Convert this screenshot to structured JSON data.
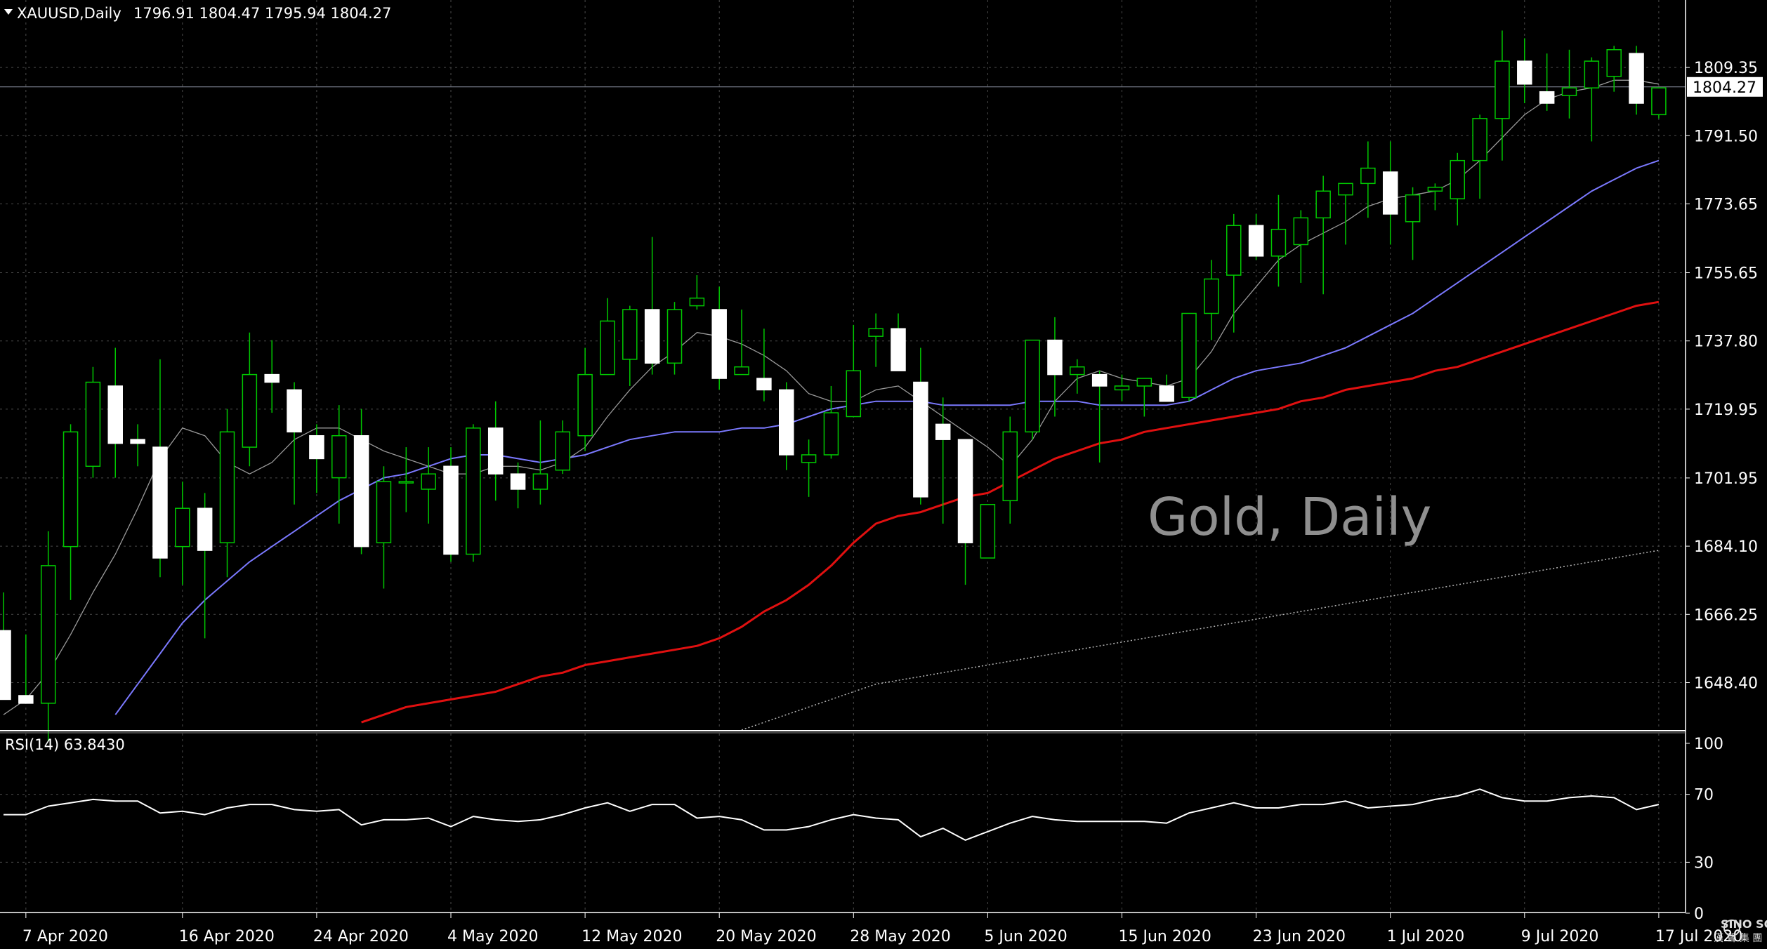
{
  "header": {
    "symbol": "XAUUSD,Daily",
    "ohlc": "1796.91 1804.47 1795.94 1804.27"
  },
  "watermark": "Gold, Daily",
  "rsi_label": "RSI(14) 63.8430",
  "logo": {
    "text": "SINO SOUND",
    "subtext": "漢 聲 集 團"
  },
  "colors": {
    "background": "#000000",
    "grid": "#4a4a4a",
    "bull_candle": "#00c800",
    "bear_body": "#ffffff",
    "ma_fast": "#9a9a9a",
    "ma_20": "#7b79ff",
    "ma_50": "#e01010",
    "ma_100": "#b5b5b5",
    "rsi_line": "#ffffff",
    "bid_line": "#8a8fa0"
  },
  "chart_data": [
    {
      "type": "candlestick",
      "title": "XAUUSD,Daily",
      "y_ticks": [
        1648.4,
        1666.25,
        1684.1,
        1701.95,
        1719.95,
        1737.8,
        1755.65,
        1773.65,
        1791.5,
        1809.35
      ],
      "y_range": [
        1636,
        1827
      ],
      "last_price": "1804.27",
      "x_labels": [
        {
          "label": "7 Apr 2020",
          "bar": 1
        },
        {
          "label": "16 Apr 2020",
          "bar": 8
        },
        {
          "label": "24 Apr 2020",
          "bar": 14
        },
        {
          "label": "4 May 2020",
          "bar": 20
        },
        {
          "label": "12 May 2020",
          "bar": 26
        },
        {
          "label": "20 May 2020",
          "bar": 32
        },
        {
          "label": "28 May 2020",
          "bar": 38
        },
        {
          "label": "5 Jun 2020",
          "bar": 44
        },
        {
          "label": "15 Jun 2020",
          "bar": 50
        },
        {
          "label": "23 Jun 2020",
          "bar": 56
        },
        {
          "label": "1 Jul 2020",
          "bar": 62
        },
        {
          "label": "9 Jul 2020",
          "bar": 68
        },
        {
          "label": "17 Jul 2020",
          "bar": 74
        }
      ],
      "candles": [
        [
          1662,
          1672,
          1644,
          1644
        ],
        [
          1645,
          1661,
          1643,
          1643
        ],
        [
          1643,
          1688,
          1633,
          1679
        ],
        [
          1684,
          1716,
          1670,
          1714
        ],
        [
          1705,
          1731,
          1702,
          1727
        ],
        [
          1726,
          1736,
          1702,
          1711
        ],
        [
          1712,
          1716,
          1705,
          1711
        ],
        [
          1710,
          1733,
          1676,
          1681
        ],
        [
          1684,
          1701,
          1674,
          1694
        ],
        [
          1694,
          1698,
          1660,
          1683
        ],
        [
          1685,
          1720,
          1676,
          1714
        ],
        [
          1710,
          1740,
          1705,
          1729
        ],
        [
          1729,
          1738,
          1719,
          1727
        ],
        [
          1725,
          1727,
          1695,
          1714
        ],
        [
          1713,
          1716,
          1698,
          1707
        ],
        [
          1702,
          1721,
          1690,
          1713
        ],
        [
          1713,
          1720,
          1682,
          1684
        ],
        [
          1685,
          1705,
          1673,
          1701
        ],
        [
          1701,
          1710,
          1693,
          1701
        ],
        [
          1699,
          1710,
          1690,
          1703
        ],
        [
          1705,
          1710,
          1680,
          1682
        ],
        [
          1682,
          1716,
          1680,
          1715
        ],
        [
          1715,
          1722,
          1696,
          1703
        ],
        [
          1703,
          1706,
          1694,
          1699
        ],
        [
          1699,
          1717,
          1695,
          1703
        ],
        [
          1704,
          1717,
          1703,
          1714
        ],
        [
          1713,
          1736,
          1709,
          1729
        ],
        [
          1729,
          1749,
          1729,
          1743
        ],
        [
          1733,
          1747,
          1726,
          1746
        ],
        [
          1746,
          1765,
          1729,
          1732
        ],
        [
          1732,
          1748,
          1729,
          1746
        ],
        [
          1747,
          1755,
          1746,
          1749
        ],
        [
          1746,
          1752,
          1725,
          1728
        ],
        [
          1729,
          1746,
          1729,
          1731
        ],
        [
          1728,
          1741,
          1722,
          1725
        ],
        [
          1725,
          1727,
          1704,
          1708
        ],
        [
          1706,
          1712,
          1697,
          1708
        ],
        [
          1708,
          1726,
          1707,
          1719
        ],
        [
          1718,
          1742,
          1718,
          1730
        ],
        [
          1739,
          1745,
          1731,
          1741
        ],
        [
          1741,
          1745,
          1730,
          1730
        ],
        [
          1727,
          1736,
          1695,
          1697
        ],
        [
          1716,
          1723,
          1690,
          1712
        ],
        [
          1712,
          1712,
          1674,
          1685
        ],
        [
          1681,
          1694,
          1681,
          1695
        ],
        [
          1696,
          1718,
          1690,
          1714
        ],
        [
          1714,
          1738,
          1712,
          1738
        ],
        [
          1738,
          1744,
          1718,
          1729
        ],
        [
          1729,
          1733,
          1724,
          1731
        ],
        [
          1729,
          1730,
          1706,
          1726
        ],
        [
          1725,
          1729,
          1722,
          1726
        ],
        [
          1726,
          1728,
          1718,
          1728
        ],
        [
          1726,
          1729,
          1722,
          1722
        ],
        [
          1723,
          1745,
          1722,
          1745
        ],
        [
          1745,
          1759,
          1738,
          1754
        ],
        [
          1755,
          1771,
          1740,
          1768
        ],
        [
          1768,
          1771,
          1759,
          1760
        ],
        [
          1760,
          1776,
          1752,
          1767
        ],
        [
          1763,
          1772,
          1753,
          1770
        ],
        [
          1770,
          1781,
          1750,
          1777
        ],
        [
          1776,
          1779,
          1763,
          1779
        ],
        [
          1779,
          1790,
          1770,
          1783
        ],
        [
          1782,
          1790,
          1763,
          1771
        ],
        [
          1769,
          1778,
          1759,
          1776
        ],
        [
          1777,
          1779,
          1772,
          1778
        ],
        [
          1775,
          1787,
          1768,
          1785
        ],
        [
          1785,
          1797,
          1775,
          1796
        ],
        [
          1796,
          1819,
          1785,
          1811
        ],
        [
          1811,
          1817,
          1800,
          1805
        ],
        [
          1803,
          1813,
          1798,
          1800
        ],
        [
          1802,
          1814,
          1796,
          1804
        ],
        [
          1804,
          1812,
          1790,
          1811
        ],
        [
          1807,
          1815,
          1803,
          1814
        ],
        [
          1813,
          1815,
          1797,
          1800
        ],
        [
          1797,
          1804,
          1796,
          1804
        ]
      ],
      "ma_fast": [
        1640,
        1644,
        1651,
        1661,
        1672,
        1682,
        1694,
        1707,
        1715,
        1713,
        1706,
        1703,
        1706,
        1712,
        1715,
        1715,
        1712,
        1709,
        1707,
        1705,
        1703,
        1703,
        1705,
        1705,
        1704,
        1706,
        1710,
        1718,
        1725,
        1731,
        1735,
        1740,
        1739,
        1737,
        1734,
        1730,
        1724,
        1722,
        1722,
        1725,
        1726,
        1722,
        1718,
        1714,
        1710,
        1705,
        1712,
        1722,
        1728,
        1730,
        1728,
        1727,
        1726,
        1728,
        1735,
        1745,
        1752,
        1759,
        1763,
        1766,
        1769,
        1773,
        1775,
        1776,
        1777,
        1780,
        1785,
        1791,
        1797,
        1801,
        1803,
        1804,
        1806,
        1806,
        1805
      ],
      "ma_20": [
        1605,
        1612,
        1618,
        1625,
        1632,
        1640,
        1648,
        1656,
        1664,
        1670,
        1675,
        1680,
        1684,
        1688,
        1692,
        1696,
        1699,
        1702,
        1703,
        1705,
        1707,
        1708,
        1708,
        1707,
        1706,
        1707,
        1708,
        1710,
        1712,
        1713,
        1714,
        1714,
        1714,
        1715,
        1715,
        1716,
        1718,
        1720,
        1721,
        1722,
        1722,
        1722,
        1721,
        1721,
        1721,
        1721,
        1722,
        1722,
        1722,
        1721,
        1721,
        1721,
        1721,
        1722,
        1725,
        1728,
        1730,
        1731,
        1732,
        1734,
        1736,
        1739,
        1742,
        1745,
        1749,
        1753,
        1757,
        1761,
        1765,
        1769,
        1773,
        1777,
        1780,
        1783,
        1785
      ],
      "ma_50": [
        1580,
        1584,
        1588,
        1592,
        1596,
        1600,
        1604,
        1608,
        1612,
        1615,
        1618,
        1622,
        1625,
        1628,
        1632,
        1635,
        1638,
        1640,
        1642,
        1643,
        1644,
        1645,
        1646,
        1648,
        1650,
        1651,
        1653,
        1654,
        1655,
        1656,
        1657,
        1658,
        1660,
        1663,
        1667,
        1670,
        1674,
        1679,
        1685,
        1690,
        1692,
        1693,
        1695,
        1697,
        1698,
        1701,
        1704,
        1707,
        1709,
        1711,
        1712,
        1714,
        1715,
        1716,
        1717,
        1718,
        1719,
        1720,
        1722,
        1723,
        1725,
        1726,
        1727,
        1728,
        1730,
        1731,
        1733,
        1735,
        1737,
        1739,
        1741,
        1743,
        1745,
        1747,
        1748
      ],
      "ma_100": [
        1570,
        1572,
        1574,
        1576,
        1578,
        1580,
        1582,
        1584,
        1586,
        1588,
        1590,
        1592,
        1594,
        1596,
        1598,
        1600,
        1602,
        1604,
        1606,
        1608,
        1610,
        1612,
        1614,
        1616,
        1618,
        1620,
        1622,
        1624,
        1626,
        1628,
        1630,
        1632,
        1634,
        1636,
        1638,
        1640,
        1642,
        1644,
        1646,
        1648,
        1649,
        1650,
        1651,
        1652,
        1653,
        1654,
        1655,
        1656,
        1657,
        1658,
        1659,
        1660,
        1661,
        1662,
        1663,
        1664,
        1665,
        1666,
        1667,
        1668,
        1669,
        1670,
        1671,
        1672,
        1673,
        1674,
        1675,
        1676,
        1677,
        1678,
        1679,
        1680,
        1681,
        1682,
        1683
      ]
    },
    {
      "type": "line",
      "title": "RSI(14) 63.8430",
      "y_ticks": [
        {
          "value": 100,
          "label": "100"
        },
        {
          "value": 70,
          "label": "70"
        },
        {
          "value": 30,
          "label": "30"
        },
        {
          "value": 0,
          "label": "0"
        }
      ],
      "y_range": [
        0,
        100
      ],
      "rsi": [
        58,
        58,
        63,
        65,
        67,
        66,
        66,
        59,
        60,
        58,
        62,
        64,
        64,
        61,
        60,
        61,
        52,
        55,
        55,
        56,
        51,
        57,
        55,
        54,
        55,
        58,
        62,
        65,
        60,
        64,
        64,
        56,
        57,
        55,
        49,
        49,
        51,
        55,
        58,
        56,
        55,
        45,
        50,
        43,
        48,
        53,
        57,
        55,
        54,
        54,
        54,
        54,
        53,
        59,
        62,
        65,
        62,
        62,
        64,
        64,
        66,
        62,
        63,
        64,
        67,
        69,
        73,
        68,
        66,
        66,
        68,
        69,
        68,
        61,
        64
      ]
    }
  ]
}
